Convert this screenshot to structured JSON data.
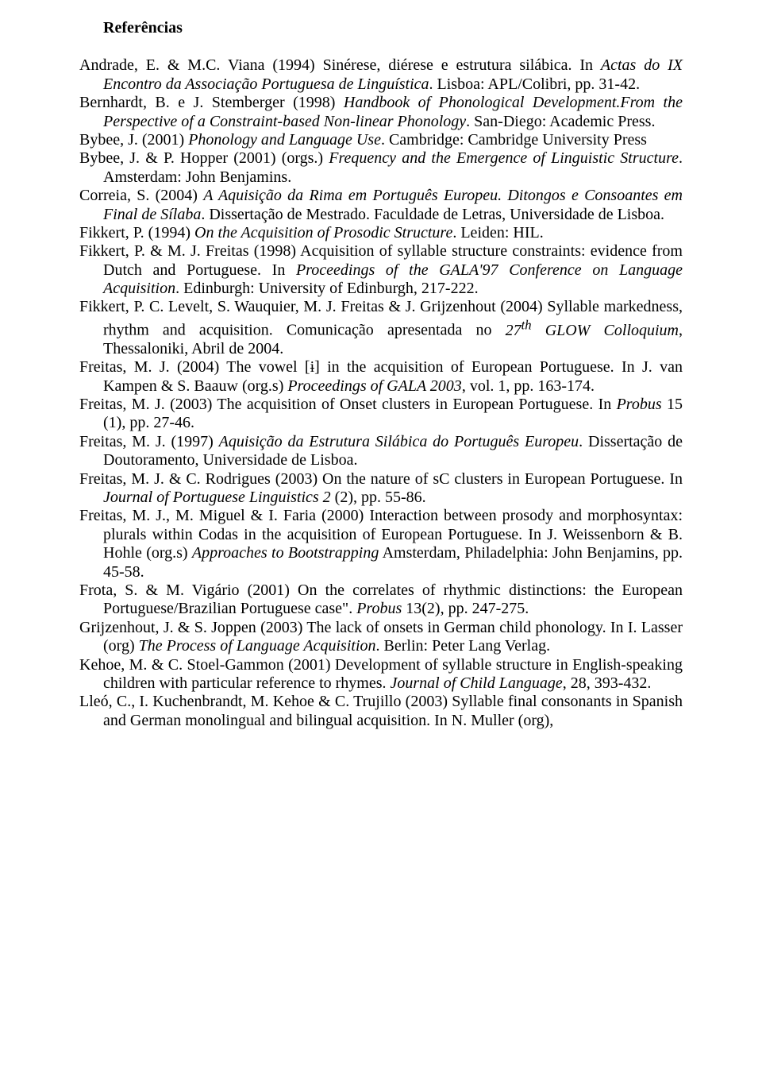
{
  "heading": "Referências",
  "refs": {
    "r1": "Andrade, E. & M.C. Viana (1994) Sinérese, diérese e estrutura silábica. In <i>Actas do IX Encontro da Associação Portuguesa de Linguística</i>. Lisboa: APL/Colibri, pp. 31-42.",
    "r2": "Bernhardt, B. e J. Stemberger (1998) <i>Handbook of Phonological Development.From the Perspective of a Constraint-based Non-linear Phonology</i>. San-Diego: Academic Press.",
    "r3": "Bybee, J. (2001) <i>Phonology and Language Use</i>. Cambridge: Cambridge University Press",
    "r4": "Bybee, J. & P. Hopper (2001) (orgs.) <i>Frequency and the Emergence of Linguistic Structure</i>. Amsterdam: John Benjamins.",
    "r5": "Correia, S. (2004) <i>A Aquisição da Rima em Português Europeu. Ditongos e Consoantes em Final de Sílaba</i>. Dissertação de Mestrado. Faculdade de Letras, Universidade de Lisboa.",
    "r6": "Fikkert, P. (1994) <i>On the Acquisition of Prosodic Structure</i>. Leiden: HIL.",
    "r7": "Fikkert, P. & M. J. Freitas (1998) Acquisition of syllable structure constraints: evidence from Dutch and Portuguese. In <i>Proceedings of the GALA'97 Conference on Language Acquisition</i>. Edinburgh: University of Edinburgh, 217-222.",
    "r8": "Fikkert, P. C. Levelt, S. Wauquier, M. J. Freitas & J. Grijzenhout (2004) Syllable markedness, rhythm and acquisition. Comunicação apresentada no <i>27<sup>th</sup> GLOW Colloquium</i>, Thessaloniki, Abril de 2004.",
    "r9": "Freitas, M. J. (2004) The vowel [ɨ] in the acquisition of European Portuguese. In J. van Kampen & S. Baauw (org.s) <i>Proceedings of GALA 2003</i>, vol. 1, pp. 163-174.",
    "r10": "Freitas, M. J. (2003) The acquisition of Onset clusters in European Portuguese. In <i>Probus</i> 15 (1), pp. 27-46.",
    "r11": "Freitas, M. J. (1997) <i>Aquisição da Estrutura Silábica do Português Europeu</i>. Dissertação de Doutoramento, Universidade de Lisboa.",
    "r12": "Freitas, M. J. & C. Rodrigues (2003) On the nature of sC clusters in European Portuguese. In <i>Journal of Portuguese Linguistics 2</i> (2), pp. 55-86.",
    "r13": "Freitas, M. J., M. Miguel & I. Faria (2000) Interaction between prosody and morphosyntax: plurals within Codas in the acquisition of European Portuguese. In J. Weissenborn & B. Hohle (org.s) <i>Approaches to Bootstrapping</i> Amsterdam, Philadelphia: John Benjamins, pp. 45-58.",
    "r14": "Frota, S. & M. Vigário (2001) On the correlates of rhythmic distinctions: the European Portuguese/Brazilian Portuguese case\". <i>Probus</i> 13(2), pp. 247-275.",
    "r15": "Grijzenhout, J. & S. Joppen (2003) The lack of onsets in German child phonology. In I. Lasser (org) <i>The Process of Language Acquisition</i>. Berlin: Peter Lang Verlag.",
    "r16": "Kehoe, M. & C. Stoel-Gammon (2001) Development of syllable structure in English-speaking children with particular reference to rhymes. <i>Journal of Child Language</i>, 28, 393-432.",
    "r17": "Lleó, C., I. Kuchenbrandt, M. Kehoe & C. Trujillo (2003) Syllable final consonants in Spanish and German monolingual and bilingual acquisition. In N. Muller (org),"
  }
}
